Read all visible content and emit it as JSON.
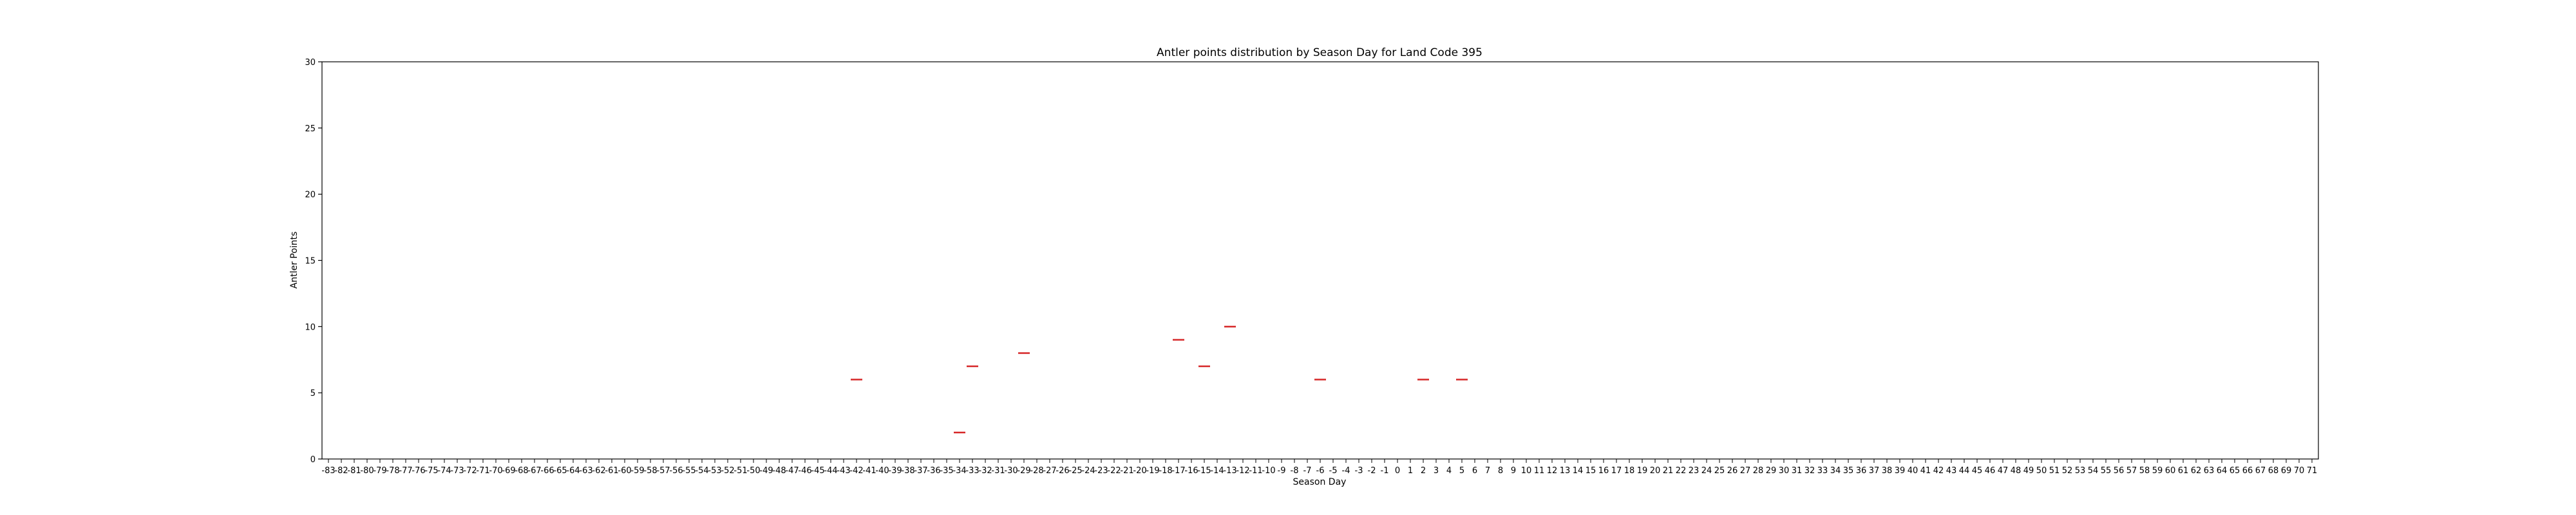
{
  "chart_data": {
    "type": "box",
    "title": "Antler points distribution by Season Day for Land Code 395",
    "xlabel": "Season Day",
    "ylabel": "Antler Points",
    "ylim": [
      0,
      30
    ],
    "yticks": [
      0,
      5,
      10,
      15,
      20,
      25,
      30
    ],
    "x_range": [
      -83,
      71
    ],
    "grid": false,
    "median_color": "#d62728",
    "points": [
      {
        "x": -42,
        "y": 6
      },
      {
        "x": -34,
        "y": 2
      },
      {
        "x": -33,
        "y": 7
      },
      {
        "x": -29,
        "y": 8
      },
      {
        "x": -17,
        "y": 9
      },
      {
        "x": -15,
        "y": 7
      },
      {
        "x": -13,
        "y": 10
      },
      {
        "x": -6,
        "y": 6
      },
      {
        "x": 2,
        "y": 6
      },
      {
        "x": 5,
        "y": 6
      }
    ]
  }
}
